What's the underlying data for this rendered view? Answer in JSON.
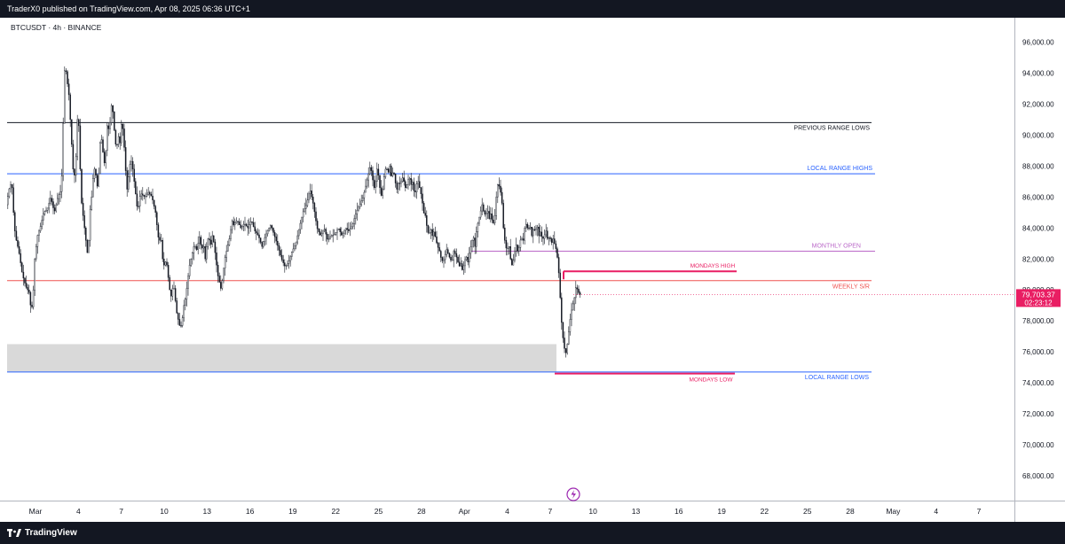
{
  "header": {
    "published": "TraderX0 published on TradingView.com, Apr 08, 2025 06:36 UTC+1"
  },
  "footer": {
    "brand": "TradingView"
  },
  "chart_data": {
    "type": "candlestick",
    "symbol_label": "BTCUSDT · 4h · BINANCE",
    "ylim": [
      66400,
      97000
    ],
    "y_ticks": [
      68000,
      70000,
      72000,
      74000,
      76000,
      78000,
      80000,
      82000,
      84000,
      86000,
      88000,
      90000,
      92000,
      94000,
      96000
    ],
    "y_tick_labels": [
      "68,000.00",
      "70,000.00",
      "72,000.00",
      "74,000.00",
      "76,000.00",
      "78,000.00",
      "80,000.00",
      "82,000.00",
      "84,000.00",
      "86,000.00",
      "88,000.00",
      "90,000.00",
      "92,000.00",
      "94,000.00",
      "96,000.00"
    ],
    "x_ticks": [
      "Mar",
      "4",
      "7",
      "10",
      "13",
      "16",
      "19",
      "22",
      "25",
      "28",
      "Apr",
      "4",
      "7",
      "10",
      "13",
      "16",
      "19",
      "22",
      "25",
      "28",
      "May",
      "4",
      "7"
    ],
    "price_line": {
      "value": 79703.37,
      "label": "79,703.37",
      "countdown": "02:23:12",
      "color": "#e91e63"
    },
    "levels": [
      {
        "name": "previous-range-lows",
        "label": "PREVIOUS RANGE LOWS",
        "value": 90800,
        "color": "#131722"
      },
      {
        "name": "local-range-highs",
        "label": "LOCAL RANGE HIGHS",
        "value": 87500,
        "color": "#2962ff"
      },
      {
        "name": "monthly-open",
        "label": "MONTHLY OPEN",
        "value": 82500,
        "color": "#ba68c8"
      },
      {
        "name": "weekly-sr",
        "label": "WEEKLY S/R",
        "value": 80600,
        "color": "#ef5350"
      },
      {
        "name": "local-range-lows",
        "label": "LOCAL RANGE LOWS",
        "value": 74700,
        "color": "#2962ff"
      }
    ],
    "rays": [
      {
        "name": "mondays-high",
        "label": "MONDAYS HIGH",
        "value": 81200,
        "color": "#e91e63"
      },
      {
        "name": "mondays-low",
        "label": "MONDAYS LOW",
        "value": 74600,
        "color": "#e91e63"
      }
    ],
    "zone": {
      "name": "demand-zone",
      "from": 74700,
      "to": 76500,
      "color": "#d9d9d9"
    },
    "path": [
      [
        0,
        85500
      ],
      [
        3,
        86500
      ],
      [
        6,
        87000
      ],
      [
        8,
        85000
      ],
      [
        10,
        83500
      ],
      [
        14,
        82500
      ],
      [
        18,
        81000
      ],
      [
        22,
        80200
      ],
      [
        26,
        79800
      ],
      [
        28,
        78500
      ],
      [
        30,
        79500
      ],
      [
        32,
        82000
      ],
      [
        35,
        83500
      ],
      [
        38,
        84000
      ],
      [
        42,
        85000
      ],
      [
        46,
        85200
      ],
      [
        50,
        86000
      ],
      [
        54,
        85000
      ],
      [
        58,
        86000
      ],
      [
        62,
        86500
      ],
      [
        66,
        95000
      ],
      [
        68,
        93500
      ],
      [
        70,
        93000
      ],
      [
        72,
        91000
      ],
      [
        74,
        89000
      ],
      [
        76,
        87000
      ],
      [
        78,
        88000
      ],
      [
        80,
        91000
      ],
      [
        82,
        90500
      ],
      [
        84,
        86000
      ],
      [
        86,
        85000
      ],
      [
        88,
        84000
      ],
      [
        90,
        83000
      ],
      [
        92,
        82000
      ],
      [
        94,
        85000
      ],
      [
        96,
        86000
      ],
      [
        98,
        87500
      ],
      [
        100,
        88000
      ],
      [
        102,
        86500
      ],
      [
        104,
        87500
      ],
      [
        106,
        90000
      ],
      [
        108,
        89500
      ],
      [
        110,
        88000
      ],
      [
        112,
        89000
      ],
      [
        114,
        91000
      ],
      [
        116,
        90000
      ],
      [
        118,
        92000
      ],
      [
        120,
        91500
      ],
      [
        122,
        90000
      ],
      [
        124,
        89000
      ],
      [
        126,
        90000
      ],
      [
        128,
        89500
      ],
      [
        130,
        91000
      ],
      [
        132,
        90000
      ],
      [
        134,
        88000
      ],
      [
        136,
        86500
      ],
      [
        138,
        87500
      ],
      [
        140,
        88500
      ],
      [
        142,
        88000
      ],
      [
        144,
        87000
      ],
      [
        146,
        86000
      ],
      [
        148,
        85000
      ],
      [
        150,
        86000
      ],
      [
        152,
        86200
      ],
      [
        156,
        86000
      ],
      [
        160,
        86300
      ],
      [
        164,
        86000
      ],
      [
        168,
        85000
      ],
      [
        170,
        84000
      ],
      [
        172,
        83000
      ],
      [
        174,
        83500
      ],
      [
        176,
        82000
      ],
      [
        178,
        81500
      ],
      [
        180,
        82000
      ],
      [
        182,
        81000
      ],
      [
        184,
        80000
      ],
      [
        186,
        79500
      ],
      [
        188,
        80500
      ],
      [
        190,
        79500
      ],
      [
        192,
        78500
      ],
      [
        194,
        78000
      ],
      [
        196,
        77500
      ],
      [
        198,
        78000
      ],
      [
        200,
        79000
      ],
      [
        202,
        79500
      ],
      [
        204,
        80500
      ],
      [
        206,
        81500
      ],
      [
        208,
        82000
      ],
      [
        210,
        82500
      ],
      [
        212,
        83000
      ],
      [
        214,
        82500
      ],
      [
        216,
        83000
      ],
      [
        218,
        83500
      ],
      [
        220,
        82500
      ],
      [
        222,
        83000
      ],
      [
        224,
        82000
      ],
      [
        226,
        83000
      ],
      [
        228,
        83500
      ],
      [
        230,
        82800
      ],
      [
        232,
        83500
      ],
      [
        234,
        83000
      ],
      [
        236,
        82000
      ],
      [
        238,
        81000
      ],
      [
        240,
        80500
      ],
      [
        242,
        80000
      ],
      [
        244,
        81000
      ],
      [
        246,
        82000
      ],
      [
        248,
        82500
      ],
      [
        250,
        83000
      ],
      [
        252,
        83500
      ],
      [
        254,
        84500
      ],
      [
        256,
        84200
      ],
      [
        260,
        84500
      ],
      [
        264,
        84000
      ],
      [
        268,
        84300
      ],
      [
        272,
        84000
      ],
      [
        276,
        84500
      ],
      [
        280,
        83800
      ],
      [
        284,
        83500
      ],
      [
        288,
        82800
      ],
      [
        290,
        83200
      ],
      [
        294,
        83800
      ],
      [
        298,
        84200
      ],
      [
        302,
        83500
      ],
      [
        306,
        82800
      ],
      [
        310,
        82000
      ],
      [
        314,
        81500
      ],
      [
        318,
        81800
      ],
      [
        322,
        82500
      ],
      [
        326,
        83000
      ],
      [
        330,
        84000
      ],
      [
        334,
        85000
      ],
      [
        338,
        85500
      ],
      [
        342,
        86500
      ],
      [
        346,
        85500
      ],
      [
        350,
        84000
      ],
      [
        354,
        83500
      ],
      [
        358,
        84000
      ],
      [
        362,
        83200
      ],
      [
        366,
        83500
      ],
      [
        370,
        83600
      ],
      [
        374,
        84000
      ],
      [
        378,
        83500
      ],
      [
        382,
        84000
      ],
      [
        386,
        83800
      ],
      [
        390,
        84200
      ],
      [
        394,
        85000
      ],
      [
        398,
        85500
      ],
      [
        402,
        86000
      ],
      [
        406,
        87000
      ],
      [
        410,
        88000
      ],
      [
        412,
        87500
      ],
      [
        414,
        86500
      ],
      [
        416,
        87000
      ],
      [
        418,
        88000
      ],
      [
        420,
        87000
      ],
      [
        422,
        86000
      ],
      [
        424,
        86500
      ],
      [
        426,
        87500
      ],
      [
        428,
        88000
      ],
      [
        430,
        87500
      ],
      [
        432,
        88000
      ],
      [
        434,
        87200
      ],
      [
        436,
        87800
      ],
      [
        438,
        87000
      ],
      [
        440,
        86500
      ],
      [
        442,
        87000
      ],
      [
        444,
        86800
      ],
      [
        446,
        87300
      ],
      [
        448,
        87000
      ],
      [
        450,
        86500
      ],
      [
        452,
        87000
      ],
      [
        454,
        87300
      ],
      [
        456,
        86800
      ],
      [
        458,
        87000
      ],
      [
        460,
        86000
      ],
      [
        462,
        86800
      ],
      [
        464,
        87000
      ],
      [
        466,
        86500
      ],
      [
        468,
        86000
      ],
      [
        470,
        85000
      ],
      [
        472,
        84800
      ],
      [
        474,
        84000
      ],
      [
        476,
        83500
      ],
      [
        478,
        84000
      ],
      [
        480,
        83500
      ],
      [
        482,
        83800
      ],
      [
        484,
        83200
      ],
      [
        486,
        82800
      ],
      [
        488,
        82500
      ],
      [
        490,
        82000
      ],
      [
        492,
        81800
      ],
      [
        494,
        82200
      ],
      [
        496,
        82600
      ],
      [
        498,
        82300
      ],
      [
        500,
        82000
      ],
      [
        502,
        81800
      ],
      [
        504,
        82500
      ],
      [
        506,
        82300
      ],
      [
        508,
        82000
      ],
      [
        510,
        81500
      ],
      [
        512,
        81700
      ],
      [
        514,
        81200
      ],
      [
        516,
        81800
      ],
      [
        518,
        82200
      ],
      [
        520,
        81800
      ],
      [
        522,
        82500
      ],
      [
        524,
        83000
      ],
      [
        526,
        83500
      ],
      [
        528,
        82800
      ],
      [
        530,
        84000
      ],
      [
        532,
        84500
      ],
      [
        534,
        85000
      ],
      [
        536,
        85500
      ],
      [
        538,
        85000
      ],
      [
        540,
        84800
      ],
      [
        542,
        85200
      ],
      [
        544,
        84600
      ],
      [
        546,
        85000
      ],
      [
        548,
        84200
      ],
      [
        550,
        84500
      ],
      [
        552,
        86000
      ],
      [
        554,
        87000
      ],
      [
        556,
        86500
      ],
      [
        558,
        86000
      ],
      [
        560,
        84000
      ],
      [
        562,
        83000
      ],
      [
        564,
        82500
      ],
      [
        566,
        83000
      ],
      [
        568,
        82000
      ],
      [
        570,
        81500
      ],
      [
        572,
        82200
      ],
      [
        574,
        83000
      ],
      [
        576,
        82500
      ],
      [
        578,
        82800
      ],
      [
        580,
        83500
      ],
      [
        582,
        83000
      ],
      [
        584,
        84000
      ],
      [
        586,
        84300
      ],
      [
        588,
        83800
      ],
      [
        590,
        84200
      ],
      [
        592,
        83500
      ],
      [
        594,
        84000
      ],
      [
        596,
        83800
      ],
      [
        598,
        84200
      ],
      [
        600,
        83500
      ],
      [
        602,
        83800
      ],
      [
        604,
        83200
      ],
      [
        606,
        83500
      ],
      [
        608,
        83800
      ],
      [
        610,
        83200
      ],
      [
        612,
        83500
      ],
      [
        614,
        83000
      ],
      [
        616,
        83300
      ],
      [
        618,
        82900
      ],
      [
        620,
        82500
      ],
      [
        622,
        81500
      ],
      [
        624,
        79500
      ],
      [
        626,
        77500
      ],
      [
        628,
        76500
      ],
      [
        630,
        75800
      ],
      [
        632,
        76500
      ],
      [
        634,
        77500
      ],
      [
        636,
        78500
      ],
      [
        638,
        79000
      ],
      [
        640,
        79500
      ],
      [
        642,
        80300
      ],
      [
        644,
        79900
      ],
      [
        646,
        79700
      ]
    ]
  }
}
